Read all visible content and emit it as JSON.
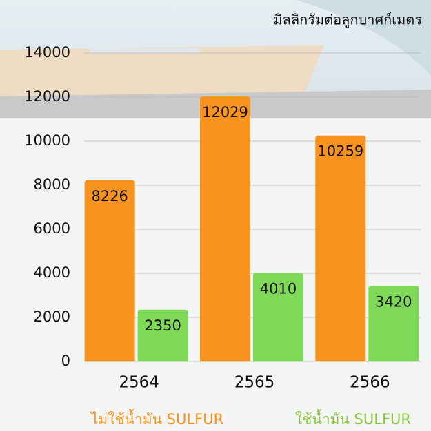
{
  "chart_data": {
    "type": "bar",
    "y_label": "มิลลิกรัมต่อลูกบาศก์เมตร",
    "categories": [
      "2564",
      "2565",
      "2566"
    ],
    "series": [
      {
        "name": "ไม่ใช้น้ำมัน SULFUR",
        "color": "#f7931e",
        "values": [
          8226,
          12029,
          10259
        ]
      },
      {
        "name": "ใช้น้ำมัน SULFUR",
        "color": "#7ed957",
        "values": [
          2350,
          4010,
          3420
        ]
      }
    ],
    "legend_colors": [
      "#f7931e",
      "#8cc63f"
    ],
    "ylim": [
      0,
      14000
    ],
    "yticks": [
      0,
      2000,
      4000,
      6000,
      8000,
      10000,
      12000,
      14000
    ],
    "grid": true
  }
}
